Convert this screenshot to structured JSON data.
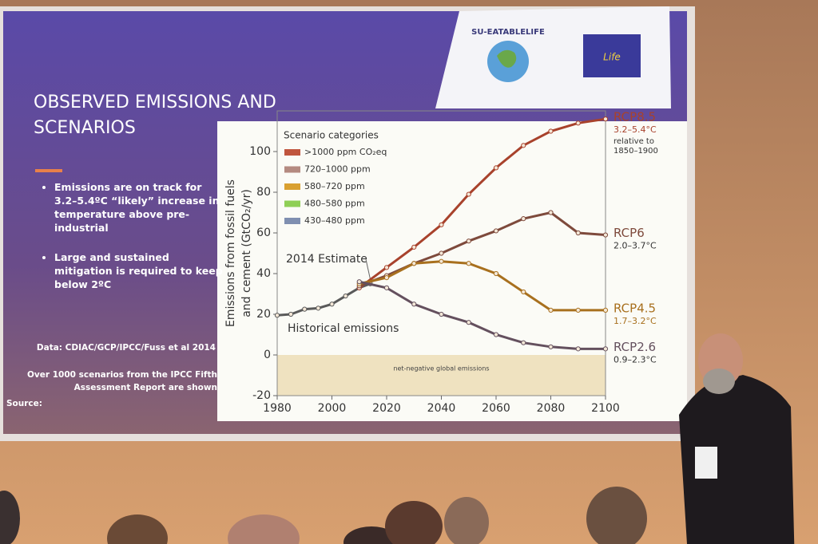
{
  "slide": {
    "title": "OBSERVED EMISSIONS AND SCENARIOS",
    "bullets": [
      "Emissions are on track for 3.2–5.4ºC “likely” increase in temperature above pre-industrial",
      "Large and sustained mitigation is required to keep below 2ºC"
    ],
    "data_credit": "Data: CDIAC/GCP/IPCC/Fuss et al 2014",
    "note": "Over 1000 scenarios from the IPCC Fifth Assessment Report are shown",
    "source_label": "Source:",
    "logo_text": "SU-EATABLELIFE",
    "eu_logo_text": "Life"
  },
  "chart_data": {
    "type": "line",
    "y_label": [
      "Emissions from fossil fuels",
      "and cement (GtCO₂/yr)"
    ],
    "legend_title": "Scenario categories",
    "scenario_categories": [
      {
        "name": ">1000 ppm CO₂eq",
        "color": "#c0553e"
      },
      {
        "name": "720–1000 ppm",
        "color": "#b48a80"
      },
      {
        "name": "580–720 ppm",
        "color": "#d9a030"
      },
      {
        "name": "480–580 ppm",
        "color": "#8fcf55"
      },
      {
        "name": "430–480 ppm",
        "color": "#7f8fb0"
      }
    ],
    "xlim": [
      1980,
      2100
    ],
    "xticks": [
      1980,
      2000,
      2020,
      2040,
      2060,
      2080,
      2100
    ],
    "ylim": [
      -20,
      120
    ],
    "yticks": [
      -20,
      0,
      20,
      40,
      60,
      80,
      100
    ],
    "annotations": {
      "estimate": "2014 Estimate",
      "negative": "net-negative global emissions"
    },
    "series": [
      {
        "name": "Historical emissions",
        "color": "#5a5a5a",
        "x": [
          1980,
          1985,
          1990,
          1995,
          2000,
          2005,
          2010,
          2014
        ],
        "values": [
          19.5,
          20,
          22.5,
          23,
          25,
          29,
          33,
          35
        ]
      },
      {
        "name": "RCP8.5",
        "color": "#a8422c",
        "range": "3.2–5.4°C",
        "note": [
          "relative to",
          "1850–1900"
        ],
        "x": [
          2010,
          2020,
          2030,
          2040,
          2050,
          2060,
          2070,
          2080,
          2090,
          2100
        ],
        "values": [
          33,
          43,
          53,
          64,
          79,
          92,
          103,
          110,
          114,
          116
        ]
      },
      {
        "name": "RCP6",
        "color": "#7e4a3c",
        "range": "2.0–3.7°C",
        "x": [
          2010,
          2020,
          2030,
          2040,
          2050,
          2060,
          2070,
          2080,
          2090,
          2100
        ],
        "values": [
          34,
          39,
          45,
          50,
          56,
          61,
          67,
          70,
          60,
          59
        ]
      },
      {
        "name": "RCP4.5",
        "color": "#a8701e",
        "range": "1.7–3.2°C",
        "x": [
          2010,
          2020,
          2030,
          2040,
          2050,
          2060,
          2070,
          2080,
          2090,
          2100
        ],
        "values": [
          35,
          38,
          45,
          46,
          45,
          40,
          31,
          22,
          22,
          22
        ]
      },
      {
        "name": "RCP2.6",
        "color": "#64505e",
        "range": "0.9–2.3°C",
        "x": [
          2010,
          2020,
          2030,
          2040,
          2050,
          2060,
          2070,
          2080,
          2090,
          2100
        ],
        "values": [
          36,
          33,
          25,
          20,
          16,
          10,
          6,
          4,
          3,
          3
        ]
      }
    ]
  }
}
